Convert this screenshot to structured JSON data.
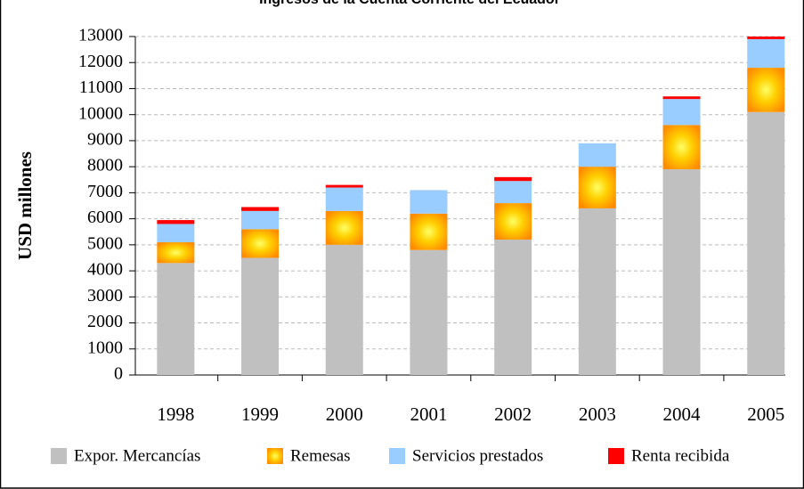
{
  "chart_data": {
    "type": "stacked_bar",
    "title": "Ingresos de la Cuenta Corriente del Ecuador",
    "y_label": "USD millones",
    "categories": [
      "1998",
      "1999",
      "2000",
      "2001",
      "2002",
      "2003",
      "2004",
      "2005"
    ],
    "series": [
      {
        "name": "Expor. Mercancías",
        "color": "#c0c0c0",
        "values": [
          4300,
          4500,
          5000,
          4800,
          5200,
          6400,
          7900,
          10100
        ]
      },
      {
        "name": "Remesas",
        "color": "#ff8c00",
        "values": [
          800,
          1100,
          1300,
          1400,
          1400,
          1600,
          1700,
          1700
        ]
      },
      {
        "name": "Servicios prestados",
        "color": "#99ccff",
        "values": [
          700,
          700,
          900,
          900,
          850,
          900,
          1000,
          1100
        ]
      },
      {
        "name": "Renta recibida",
        "color": "#ff0000",
        "values": [
          150,
          150,
          100,
          0,
          150,
          0,
          100,
          100
        ]
      }
    ],
    "ylim": [
      0,
      13000
    ],
    "yticks": [
      0,
      1000,
      2000,
      3000,
      4000,
      5000,
      6000,
      7000,
      8000,
      9000,
      10000,
      11000,
      12000,
      13000
    ],
    "grid": true
  }
}
